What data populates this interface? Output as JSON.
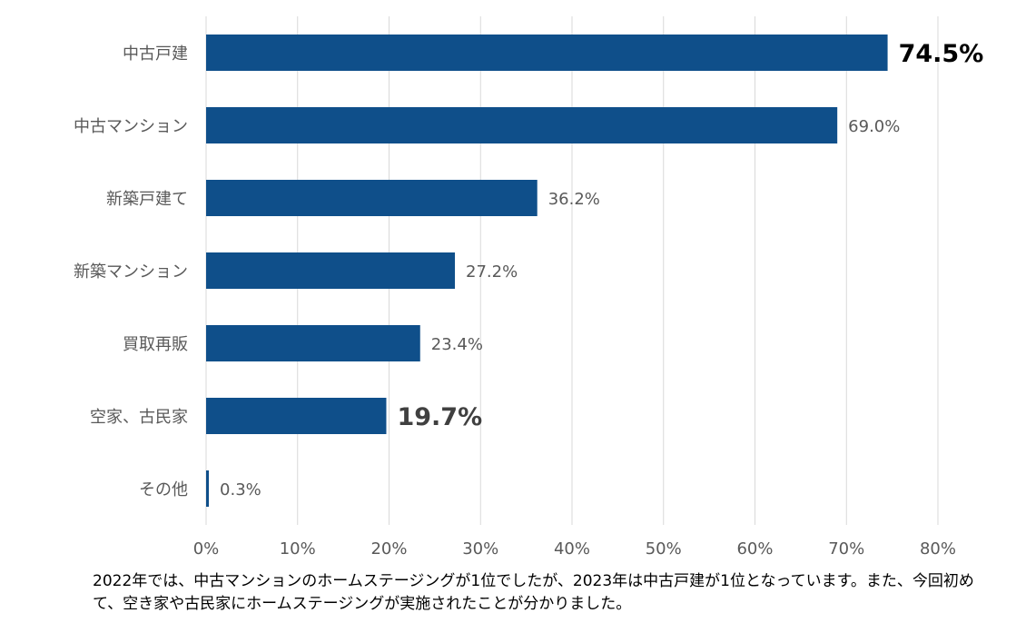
{
  "chart_data": {
    "type": "bar",
    "orientation": "horizontal",
    "categories": [
      "中古戸建",
      "中古マンション",
      "新築戸建て",
      "新築マンション",
      "買取再販",
      "空家、古民家",
      "その他"
    ],
    "values": [
      74.5,
      69.0,
      36.2,
      27.2,
      23.4,
      19.7,
      0.3
    ],
    "value_labels": [
      "74.5%",
      "69.0%",
      "36.2%",
      "27.2%",
      "23.4%",
      "19.7%",
      "0.3%"
    ],
    "highlighted": [
      "black",
      "none",
      "none",
      "none",
      "none",
      "dark",
      "none"
    ],
    "x_ticks": [
      "0%",
      "10%",
      "20%",
      "30%",
      "40%",
      "50%",
      "60%",
      "70%",
      "80%"
    ],
    "xlim": [
      0,
      80
    ],
    "grid": true,
    "bar_color": "#0f4f8a",
    "title": "",
    "xlabel": "",
    "ylabel": ""
  },
  "note": "2022年では、中古マンションのホームステージングが1位でしたが、2023年は中古戸建が1位となっています。また、今回初めて、空き家や古民家にホームステージングが実施されたことが分かりました。"
}
